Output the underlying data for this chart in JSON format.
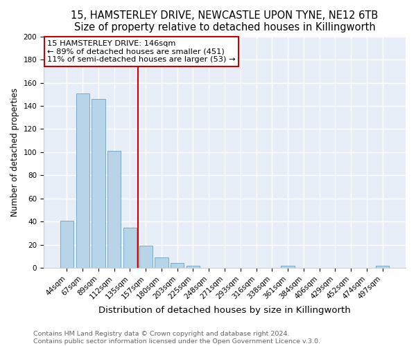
{
  "title": "15, HAMSTERLEY DRIVE, NEWCASTLE UPON TYNE, NE12 6TB",
  "subtitle": "Size of property relative to detached houses in Killingworth",
  "xlabel": "Distribution of detached houses by size in Killingworth",
  "ylabel": "Number of detached properties",
  "bar_labels": [
    "44sqm",
    "67sqm",
    "89sqm",
    "112sqm",
    "135sqm",
    "157sqm",
    "180sqm",
    "203sqm",
    "225sqm",
    "248sqm",
    "271sqm",
    "293sqm",
    "316sqm",
    "338sqm",
    "361sqm",
    "384sqm",
    "406sqm",
    "429sqm",
    "452sqm",
    "474sqm",
    "497sqm"
  ],
  "bar_values": [
    41,
    151,
    146,
    101,
    35,
    19,
    9,
    4,
    2,
    0,
    0,
    0,
    0,
    0,
    2,
    0,
    0,
    0,
    0,
    0,
    2
  ],
  "bar_color": "#b8d4e8",
  "bar_edge_color": "#7aaac8",
  "vline_x": 4.5,
  "vline_color": "#cc0000",
  "annotation_title": "15 HAMSTERLEY DRIVE: 146sqm",
  "annotation_line1": "← 89% of detached houses are smaller (451)",
  "annotation_line2": "11% of semi-detached houses are larger (53) →",
  "annotation_box_color": "#ffffff",
  "annotation_box_edge": "#cc0000",
  "ylim": [
    0,
    200
  ],
  "yticks": [
    0,
    20,
    40,
    60,
    80,
    100,
    120,
    140,
    160,
    180,
    200
  ],
  "footer_line1": "Contains HM Land Registry data © Crown copyright and database right 2024.",
  "footer_line2": "Contains public sector information licensed under the Open Government Licence v.3.0.",
  "background_color": "#ffffff",
  "plot_bg_color": "#e8eef8",
  "grid_color": "#ffffff",
  "title_fontsize": 10.5,
  "subtitle_fontsize": 9.5,
  "tick_fontsize": 7.5,
  "ylabel_fontsize": 8.5,
  "xlabel_fontsize": 9.5,
  "footer_fontsize": 6.8
}
